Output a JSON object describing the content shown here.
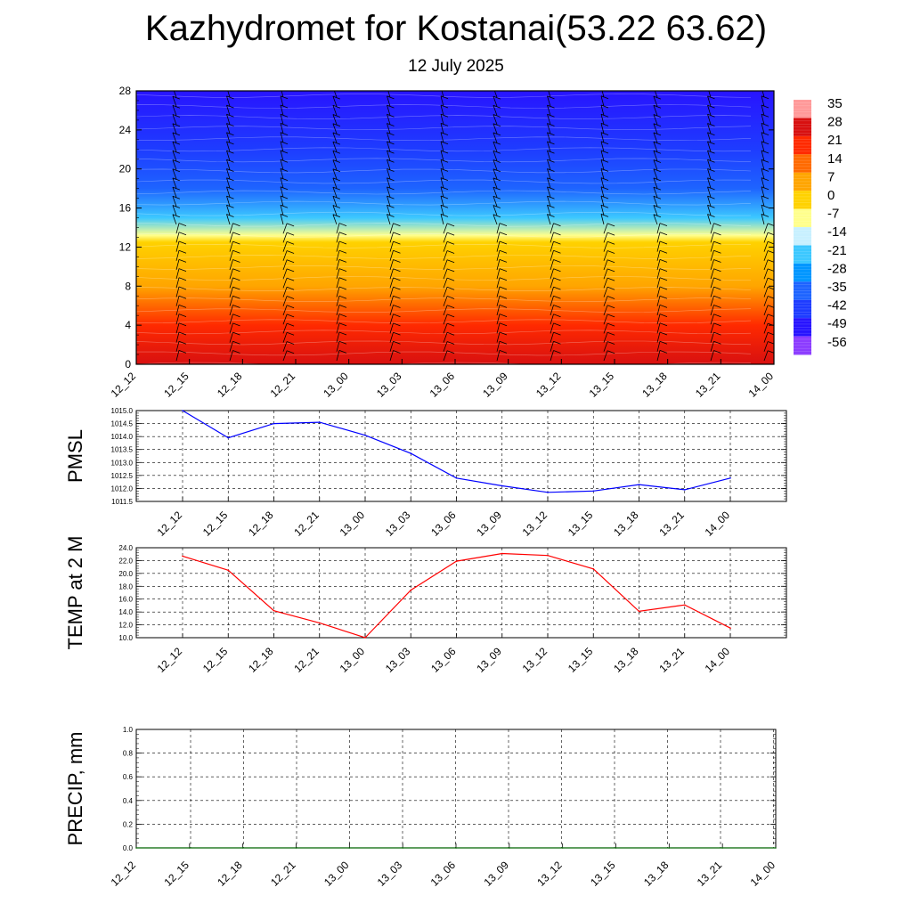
{
  "title": "Kazhydromet for Kostanai(53.22 63.62)",
  "subtitle": "12 July 2025",
  "chart_data": [
    {
      "type": "heatmap",
      "panel": "temperature-cross-section",
      "x_ticks": [
        "12_12",
        "12_15",
        "12_18",
        "12_21",
        "13_00",
        "13_03",
        "13_06",
        "13_09",
        "13_12",
        "13_15",
        "13_18",
        "13_21",
        "14_00"
      ],
      "y_ticks": [
        "0",
        "4",
        "8",
        "12",
        "16",
        "20",
        "24",
        "28"
      ],
      "ylim": [
        0,
        28
      ],
      "colorbar": {
        "labels": [
          "35",
          "28",
          "21",
          "14",
          "7",
          "0",
          "-7",
          "-14",
          "-21",
          "-28",
          "-35",
          "-42",
          "-49",
          "-56"
        ],
        "colors": [
          "#ff9999",
          "#d81010",
          "#ff2a00",
          "#ff6a00",
          "#ffa500",
          "#ffd200",
          "#ffff8c",
          "#c8f0ff",
          "#3cc8ff",
          "#0096ff",
          "#1e64ff",
          "#1e3cff",
          "#2814ff",
          "#8c3cff"
        ]
      },
      "isotherm_levels_km": [
        {
          "height": 0,
          "temp": 25
        },
        {
          "height": 4,
          "temp": 14
        },
        {
          "height": 8,
          "temp": 4
        },
        {
          "height": 12.5,
          "temp": -5
        },
        {
          "height": 13.2,
          "temp": -14
        },
        {
          "height": 15,
          "temp": -28
        },
        {
          "height": 18,
          "temp": -42
        },
        {
          "height": 22,
          "temp": -49
        },
        {
          "height": 28,
          "temp": -56
        }
      ],
      "grid": false
    },
    {
      "type": "line",
      "ylabel": "PMSL",
      "x": [
        "12_12",
        "12_15",
        "12_18",
        "12_21",
        "13_00",
        "13_03",
        "13_06",
        "13_09",
        "13_12",
        "13_15",
        "13_18",
        "13_21",
        "14_00"
      ],
      "series": [
        {
          "color": "#0000ff",
          "values": [
            1015.0,
            1013.95,
            1014.5,
            1014.55,
            1014.05,
            1013.35,
            1012.4,
            1012.1,
            1011.85,
            1011.9,
            1012.15,
            1011.95,
            1012.4
          ]
        }
      ],
      "y_ticks": [
        "1011.5",
        "1012.0",
        "1012.5",
        "1013.0",
        "1013.5",
        "1014.0",
        "1014.5",
        "1015.0"
      ],
      "ylim": [
        1011.5,
        1015.0
      ],
      "grid": true
    },
    {
      "type": "line",
      "ylabel": "TEMP at 2 M",
      "x": [
        "12_12",
        "12_15",
        "12_18",
        "12_21",
        "13_00",
        "13_03",
        "13_06",
        "13_09",
        "13_12",
        "13_15",
        "13_18",
        "13_21",
        "14_00"
      ],
      "series": [
        {
          "color": "#ff0000",
          "values": [
            22.7,
            20.5,
            14.2,
            12.3,
            10.0,
            17.4,
            21.9,
            23.1,
            22.8,
            20.7,
            14.1,
            15.1,
            11.5
          ]
        }
      ],
      "y_ticks": [
        "10.0",
        "12.0",
        "14.0",
        "16.0",
        "18.0",
        "20.0",
        "22.0",
        "24.0"
      ],
      "ylim": [
        10.0,
        24.0
      ],
      "grid": true
    },
    {
      "type": "line",
      "ylabel": "PRECIP, mm",
      "x": [
        "12_12",
        "12_15",
        "12_18",
        "12_21",
        "13_00",
        "13_03",
        "13_06",
        "13_09",
        "13_12",
        "13_15",
        "13_18",
        "13_21",
        "14_00"
      ],
      "series": [
        {
          "color": "#006400",
          "values": [
            0,
            0,
            0,
            0,
            0,
            0,
            0,
            0,
            0,
            0,
            0,
            0,
            0
          ]
        }
      ],
      "y_ticks": [
        "0.0",
        "0.2",
        "0.4",
        "0.6",
        "0.8",
        "1.0"
      ],
      "ylim": [
        0.0,
        1.0
      ],
      "grid": true
    }
  ]
}
